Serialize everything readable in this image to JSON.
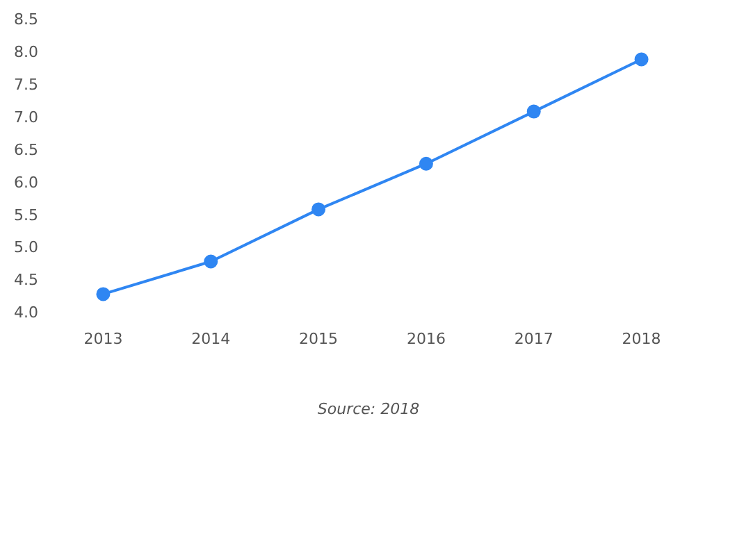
{
  "chart_data": {
    "type": "line",
    "categories": [
      "2013",
      "2014",
      "2015",
      "2016",
      "2017",
      "2018"
    ],
    "series": [
      {
        "color": "#2f86f2",
        "values": [
          4.3,
          4.8,
          5.6,
          6.3,
          7.1,
          7.9
        ]
      }
    ],
    "ylim": [
      4.0,
      8.5
    ],
    "yticks": [
      {
        "value": 4,
        "label": "4.0"
      },
      {
        "value": 4.5,
        "label": "4.5"
      },
      {
        "value": 5,
        "label": "5.0"
      },
      {
        "value": 5.5,
        "label": "5.5"
      },
      {
        "value": 6,
        "label": "6.0"
      },
      {
        "value": 6.5,
        "label": "6.5"
      },
      {
        "value": 7,
        "label": "7.0"
      },
      {
        "value": 7.5,
        "label": "7.5"
      },
      {
        "value": 8,
        "label": "8.0"
      },
      {
        "value": 8.5,
        "label": "8.5"
      }
    ],
    "grid": false,
    "legend": false,
    "marker": "circle",
    "line_style": "solid",
    "annotations": [
      "Source: 2018"
    ]
  }
}
